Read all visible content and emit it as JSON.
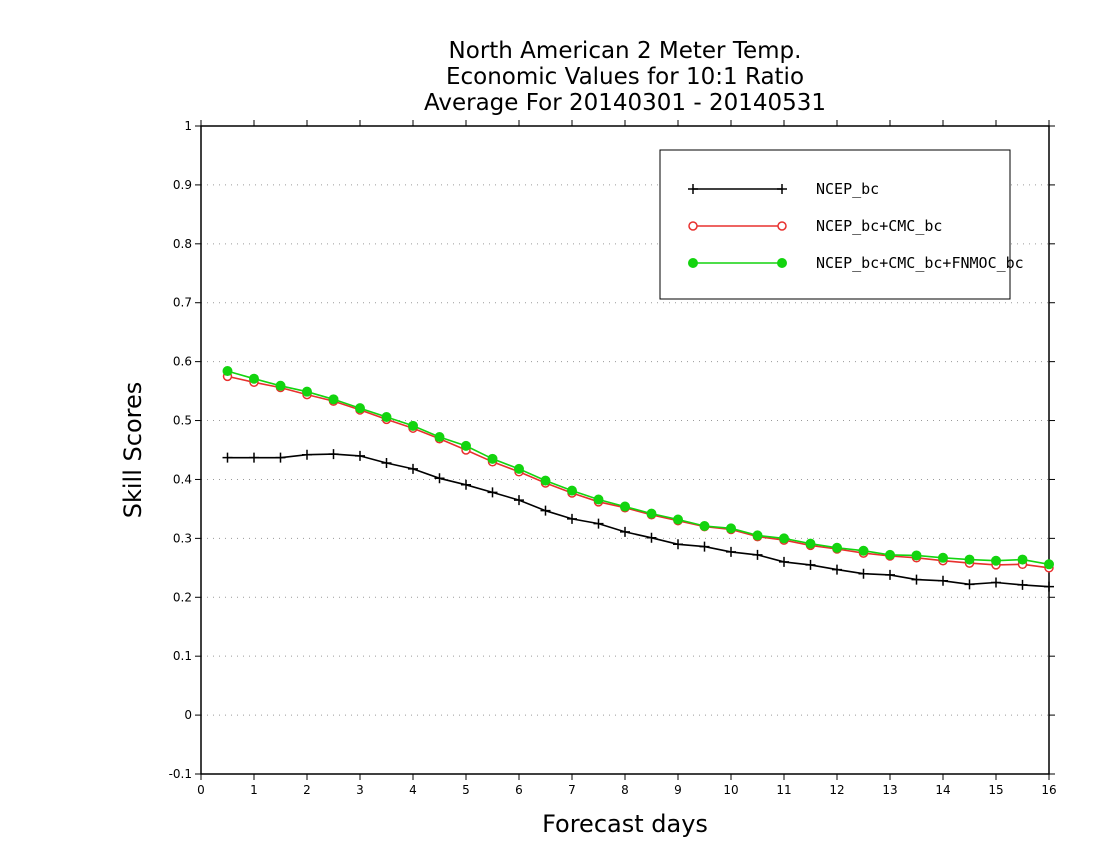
{
  "chart_data": {
    "type": "line",
    "title": [
      "North American 2 Meter Temp.",
      "Economic Values for 10:1 Ratio",
      "Average For 20140301 - 20140531"
    ],
    "xlabel": "Forecast days",
    "ylabel": "Skill Scores",
    "xlim": [
      0,
      16
    ],
    "ylim": [
      -0.1,
      1
    ],
    "xticks": [
      0,
      1,
      2,
      3,
      4,
      5,
      6,
      7,
      8,
      9,
      10,
      11,
      12,
      13,
      14,
      15,
      16
    ],
    "xtick_labels": [
      "0",
      "1",
      "2",
      "3",
      "4",
      "5",
      "6",
      "7",
      "8",
      "9",
      "10",
      "11",
      "12",
      "13",
      "14",
      "15",
      "16"
    ],
    "yticks": [
      -0.1,
      0,
      0.1,
      0.2,
      0.3,
      0.4,
      0.5,
      0.6,
      0.7,
      0.8,
      0.9,
      1
    ],
    "ytick_labels": [
      "-0.1",
      "0",
      "0.1",
      "0.2",
      "0.3",
      "0.4",
      "0.5",
      "0.6",
      "0.7",
      "0.8",
      "0.9",
      "1"
    ],
    "grid": "horizontal dotted",
    "legend_position": "top-right",
    "x": [
      0.5,
      1,
      1.5,
      2,
      2.5,
      3,
      3.5,
      4,
      4.5,
      5,
      5.5,
      6,
      6.5,
      7,
      7.5,
      8,
      8.5,
      9,
      9.5,
      10,
      10.5,
      11,
      11.5,
      12,
      12.5,
      13,
      13.5,
      14,
      14.5,
      15,
      15.5,
      16
    ],
    "series": [
      {
        "name": "NCEP_bc",
        "color": "#000000",
        "marker": "plus",
        "values": [
          0.437,
          0.437,
          0.437,
          0.442,
          0.443,
          0.44,
          0.428,
          0.418,
          0.402,
          0.391,
          0.378,
          0.365,
          0.347,
          0.333,
          0.325,
          0.311,
          0.301,
          0.29,
          0.286,
          0.277,
          0.272,
          0.26,
          0.255,
          0.247,
          0.24,
          0.238,
          0.23,
          0.228,
          0.222,
          0.225,
          0.221,
          0.218
        ]
      },
      {
        "name": "NCEP_bc+CMC_bc",
        "color": "#e8302e",
        "marker": "open-circle",
        "values": [
          0.575,
          0.565,
          0.556,
          0.544,
          0.533,
          0.518,
          0.502,
          0.487,
          0.469,
          0.45,
          0.43,
          0.413,
          0.394,
          0.377,
          0.362,
          0.352,
          0.34,
          0.33,
          0.32,
          0.315,
          0.303,
          0.297,
          0.288,
          0.282,
          0.275,
          0.27,
          0.267,
          0.262,
          0.258,
          0.255,
          0.256,
          0.25
        ]
      },
      {
        "name": "NCEP_bc+CMC_bc+FNMOC_bc",
        "color": "#13d40f",
        "marker": "filled-circle",
        "values": [
          0.584,
          0.571,
          0.559,
          0.549,
          0.536,
          0.521,
          0.506,
          0.491,
          0.472,
          0.457,
          0.435,
          0.418,
          0.398,
          0.381,
          0.366,
          0.354,
          0.342,
          0.332,
          0.321,
          0.317,
          0.305,
          0.3,
          0.291,
          0.284,
          0.279,
          0.272,
          0.271,
          0.267,
          0.264,
          0.262,
          0.264,
          0.256
        ]
      }
    ]
  }
}
